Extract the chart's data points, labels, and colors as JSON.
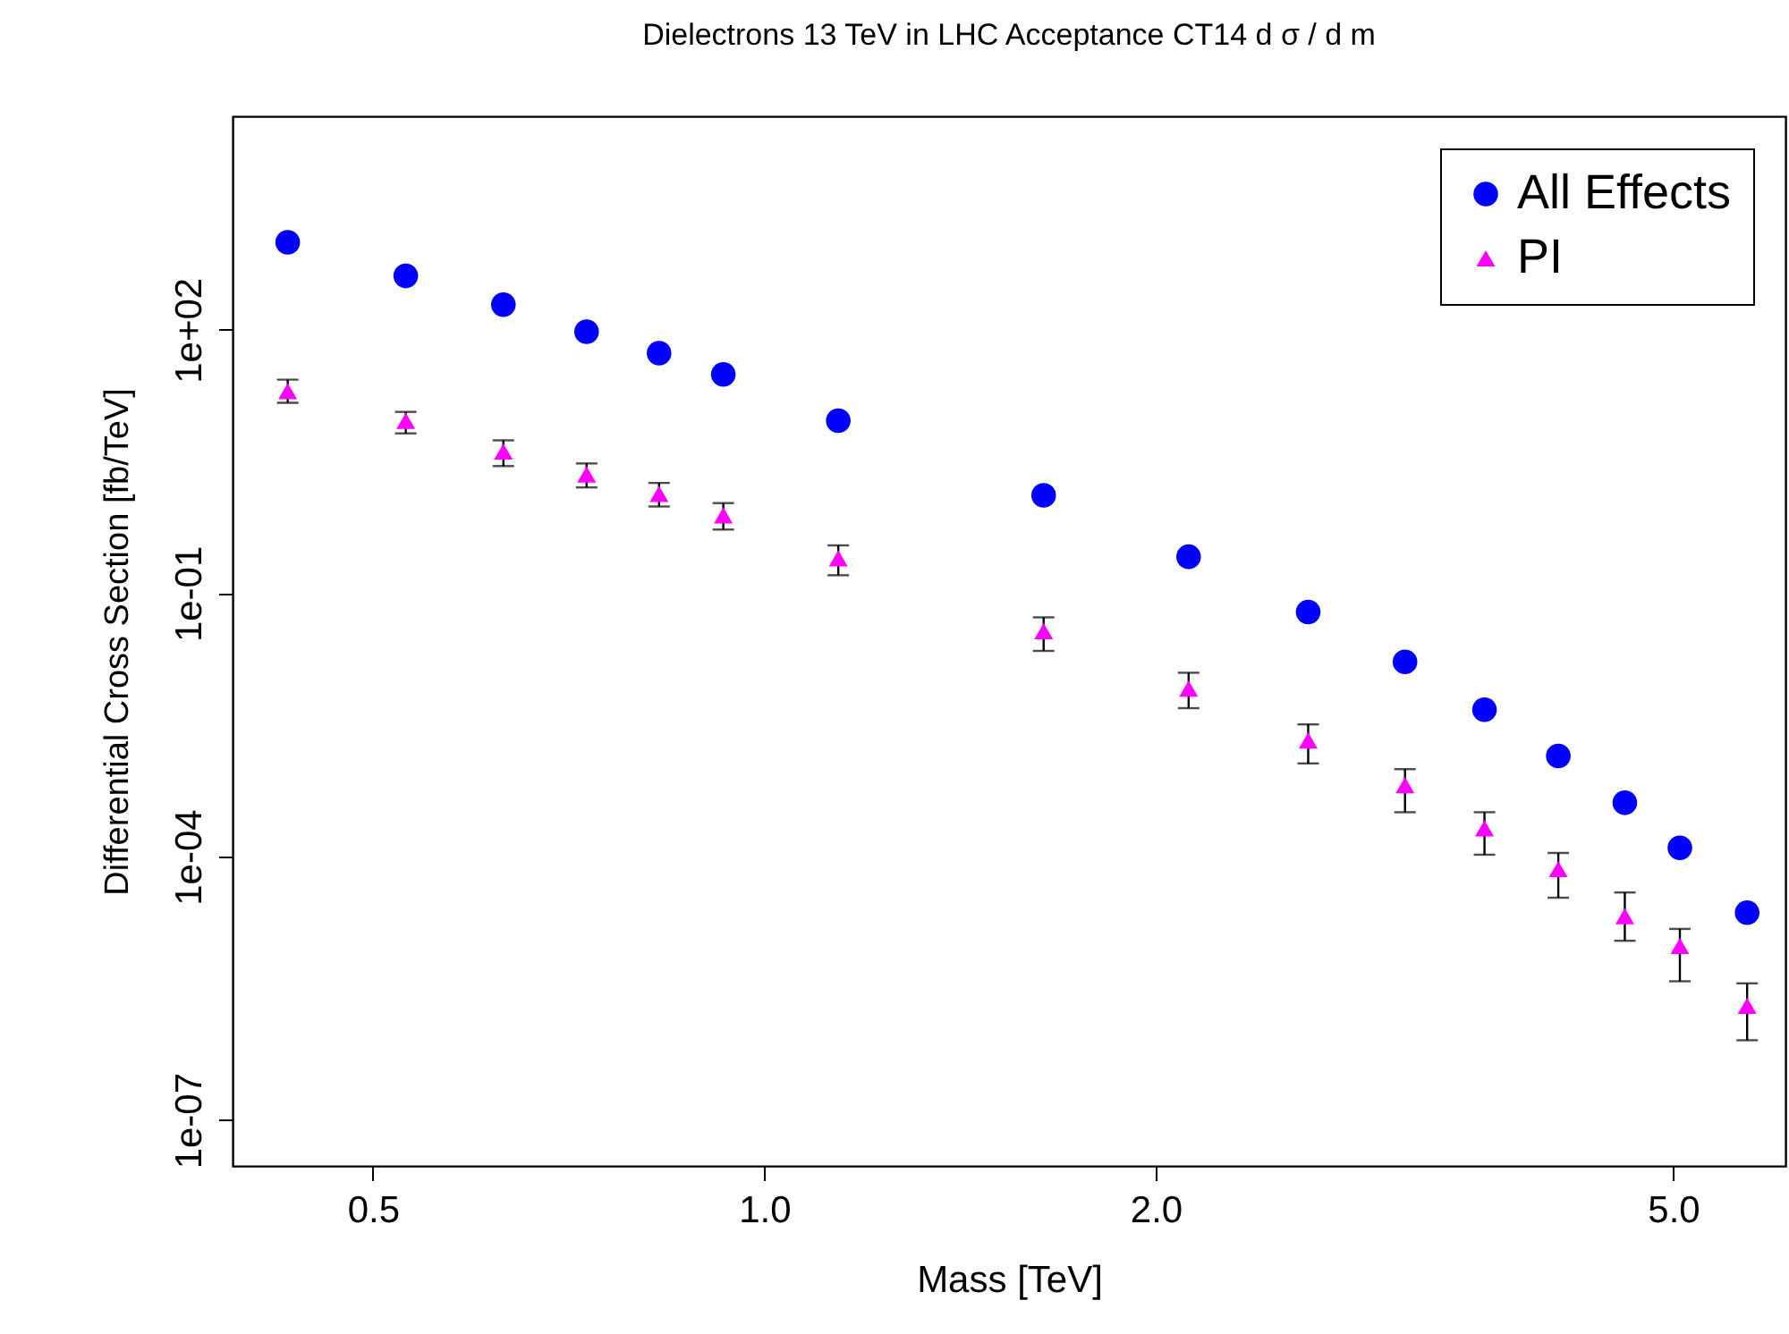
{
  "chart_data": {
    "type": "scatter",
    "title": "Dielectrons 13 TeV in LHC Acceptance CT14  d σ / d m",
    "xlabel": "Mass [TeV]",
    "ylabel": "Differential Cross Section [fb/TeV]",
    "log": "xy",
    "grid": false,
    "legend": "top right",
    "xlim": [
      0.39,
      6.1
    ],
    "xticks": [
      0.5,
      {
        "value": 1,
        "label": "1.0"
      },
      {
        "value": 2,
        "label": "2.0"
      },
      {
        "value": 5,
        "label": "5.0"
      }
    ],
    "ylim": [
      3e-08,
      27000
    ],
    "yticks": [
      {
        "value": 100,
        "label": "1e+02"
      },
      {
        "value": 0.1,
        "label": "1e-01"
      },
      {
        "value": 0.0001,
        "label": "1e-04"
      },
      {
        "value": 1e-07,
        "label": "1e-07"
      }
    ],
    "x": [
      0.43,
      0.53,
      0.63,
      0.73,
      0.83,
      0.93,
      1.14,
      1.64,
      2.12,
      2.62,
      3.11,
      3.58,
      4.08,
      4.59,
      5.06,
      5.7
    ],
    "series": [
      {
        "name": "All Effects",
        "color": "#0000ff",
        "marker": "circle",
        "values": [
          990,
          410,
          193,
          95,
          54,
          31,
          9.2,
          1.3,
          0.26,
          0.061,
          0.0165,
          0.0047,
          0.0014,
          0.00041,
          0.000126,
          2.3e-05
        ]
      },
      {
        "name": "PI",
        "color": "#ff00ff",
        "marker": "triangle",
        "values": [
          20,
          9.2,
          4.1,
          2.25,
          1.35,
          0.77,
          0.25,
          0.037,
          0.0082,
          0.0021,
          0.00065,
          0.00021,
          7.2e-05,
          2.1e-05,
          9.6e-06,
          2e-06
        ],
        "errors": [
          [
            14.7,
            27
          ],
          [
            6.6,
            11.6
          ],
          [
            2.8,
            5.5
          ],
          [
            1.6,
            3.0
          ],
          [
            0.97,
            1.8
          ],
          [
            0.53,
            1.06
          ],
          [
            0.16,
            0.35
          ],
          [
            0.022,
            0.053
          ],
          [
            0.0049,
            0.0124
          ],
          [
            0.00115,
            0.0032
          ],
          [
            0.00032,
            0.00099
          ],
          [
            0.000105,
            0.00032
          ],
          [
            3.4e-05,
            0.00011
          ],
          [
            1.1e-05,
            3.9e-05
          ],
          [
            3.8e-06,
            1.5e-05
          ],
          [
            8.1e-07,
            3.6e-06
          ]
        ]
      }
    ]
  }
}
